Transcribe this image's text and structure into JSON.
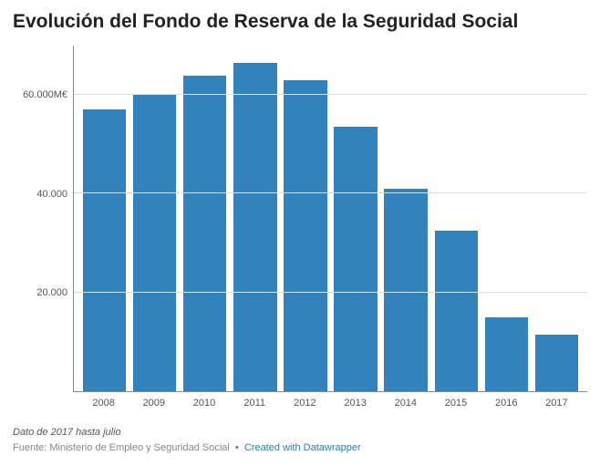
{
  "title": "Evolución del Fondo de Reserva de la Seguridad Social",
  "chart": {
    "type": "bar",
    "categories": [
      "2008",
      "2009",
      "2010",
      "2011",
      "2012",
      "2013",
      "2014",
      "2015",
      "2016",
      "2017"
    ],
    "values": [
      57000,
      60000,
      64000,
      66500,
      63000,
      53500,
      41000,
      32500,
      15000,
      11500
    ],
    "ymax": 70000,
    "yticks": [
      {
        "value": 20000,
        "label": "20.000"
      },
      {
        "value": 40000,
        "label": "40.000"
      },
      {
        "value": 60000,
        "label": "60.000M€"
      }
    ],
    "bar_color": "#3182bd",
    "grid_color": "#dddddd",
    "axis_color": "#888888",
    "background_color": "#ffffff",
    "title_fontsize": 21,
    "tick_fontsize": 11
  },
  "footer": {
    "note": "Dato de 2017 hasta julio",
    "source_prefix": "Fuente: ",
    "source": "Ministerio de Empleo y Seguridad Social",
    "separator": "•",
    "link_text": "Created with Datawrapper"
  }
}
